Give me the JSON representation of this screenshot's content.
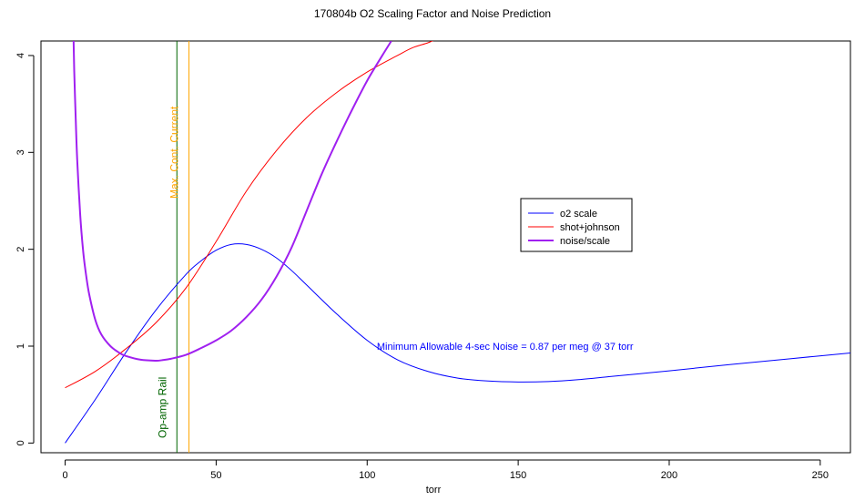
{
  "chart_data": {
    "type": "line",
    "title": "170804b   O2 Scaling Factor and Noise Prediction",
    "xlabel": "torr",
    "ylabel": "",
    "xlim": [
      -8,
      260
    ],
    "ylim": [
      -0.1,
      4.15
    ],
    "x_ticks": [
      0,
      50,
      100,
      150,
      200,
      250
    ],
    "y_ticks": [
      0,
      1,
      2,
      3,
      4
    ],
    "grid": false,
    "legend_position": "center-right",
    "series": [
      {
        "name": "o2 scale",
        "color": "#0000ff",
        "width": 1,
        "x": [
          0,
          10,
          20,
          30,
          40,
          45,
          50,
          55,
          60,
          65,
          70,
          75,
          80,
          90,
          100,
          110,
          120,
          130,
          140,
          150,
          160,
          170,
          180,
          190,
          200,
          220,
          240,
          260
        ],
        "y": [
          0.0,
          0.45,
          0.93,
          1.37,
          1.74,
          1.88,
          1.99,
          2.05,
          2.05,
          2.0,
          1.91,
          1.78,
          1.63,
          1.33,
          1.06,
          0.86,
          0.74,
          0.67,
          0.64,
          0.63,
          0.635,
          0.655,
          0.685,
          0.715,
          0.745,
          0.81,
          0.87,
          0.93
        ]
      },
      {
        "name": "shot+johnson",
        "color": "#ff0000",
        "width": 1,
        "x": [
          0,
          10,
          20,
          30,
          40,
          50,
          60,
          70,
          80,
          90,
          100,
          110,
          115,
          120,
          123
        ],
        "y": [
          0.57,
          0.74,
          0.97,
          1.24,
          1.6,
          2.08,
          2.6,
          3.02,
          3.36,
          3.62,
          3.83,
          4.0,
          4.08,
          4.13,
          4.17
        ]
      },
      {
        "name": "noise/scale",
        "color": "#a020f0",
        "width": 2,
        "x": [
          2.8,
          3,
          3.5,
          4,
          5,
          6,
          7,
          8,
          10,
          12,
          15,
          18,
          20,
          25,
          30,
          32,
          35,
          40,
          45,
          50,
          55,
          60,
          65,
          70,
          75,
          80,
          85,
          90,
          95,
          100,
          105,
          108
        ],
        "y": [
          4.15,
          3.85,
          3.35,
          2.92,
          2.35,
          1.97,
          1.72,
          1.53,
          1.27,
          1.12,
          1.0,
          0.93,
          0.9,
          0.86,
          0.85,
          0.855,
          0.87,
          0.91,
          0.98,
          1.06,
          1.16,
          1.3,
          1.48,
          1.72,
          2.02,
          2.4,
          2.78,
          3.12,
          3.44,
          3.74,
          4.0,
          4.15
        ]
      }
    ],
    "vlines": [
      {
        "x": 37,
        "color": "#006400",
        "label": "Op-amp Rail"
      },
      {
        "x": 41,
        "color": "#ffa500",
        "label": "Max. Cont. Current"
      }
    ],
    "annotation": {
      "text": "Minimum Allowable 4-sec Noise = 0.87  per meg @  37  torr",
      "x": 102,
      "y": 1.0,
      "color": "#0000ff"
    }
  }
}
